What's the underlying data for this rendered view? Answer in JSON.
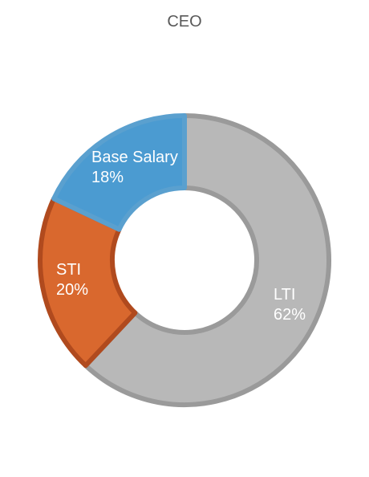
{
  "chart_data": {
    "type": "pie",
    "title": "CEO",
    "hole": true,
    "slices": [
      {
        "label": "LTI",
        "value": 62,
        "value_label": "62%",
        "color": "#b8b8b8",
        "border": "#9a9a9a"
      },
      {
        "label": "STI",
        "value": 20,
        "value_label": "20%",
        "color": "#d9682e",
        "border": "#b04a1e"
      },
      {
        "label": "Base Salary",
        "value": 18,
        "value_label": "18%",
        "color": "#4b9bd1",
        "border": "#5aa0cf"
      }
    ]
  }
}
